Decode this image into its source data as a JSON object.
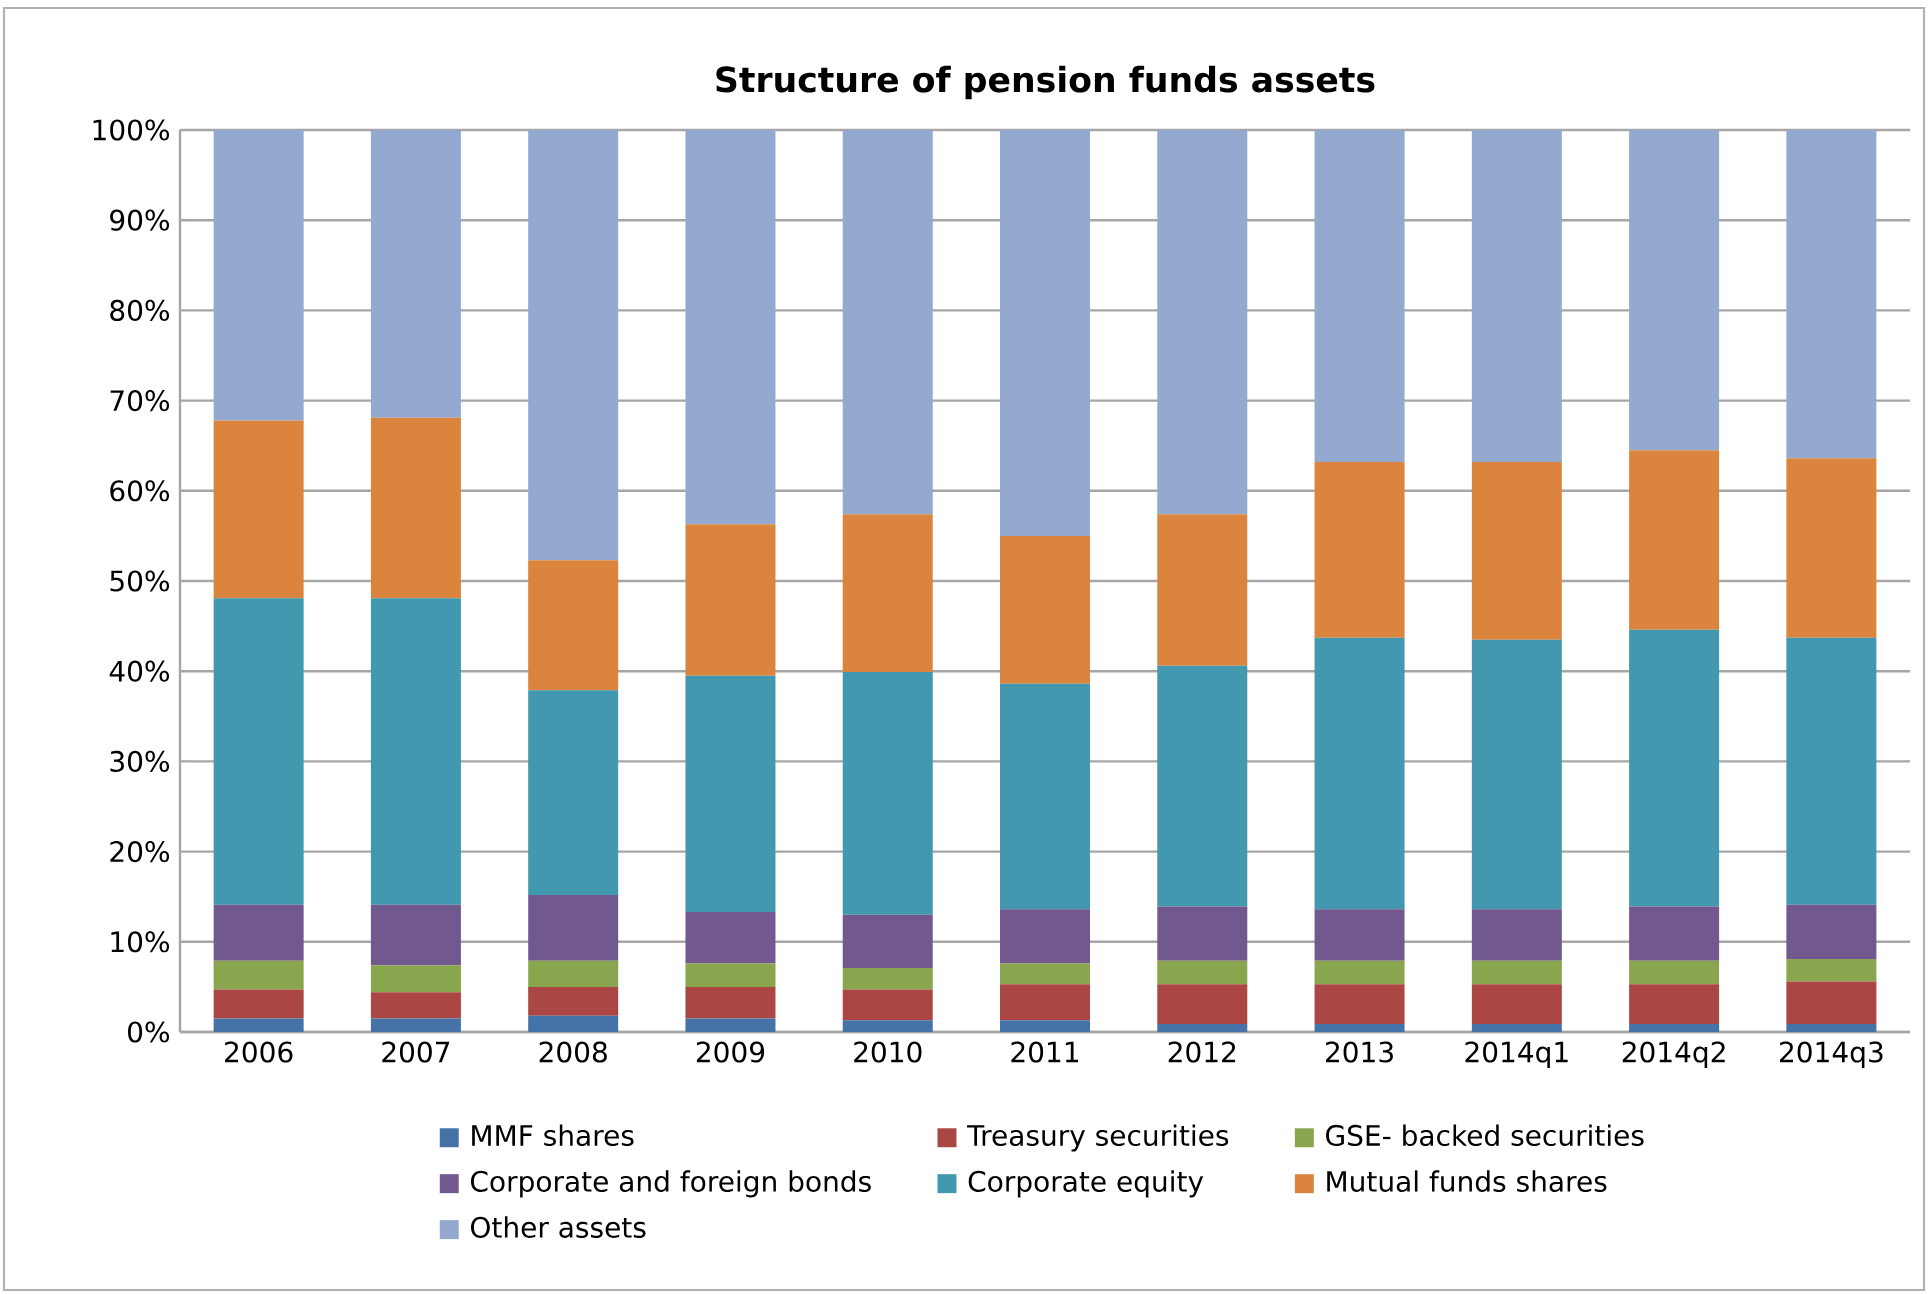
{
  "chart_data": {
    "type": "bar",
    "stacked": true,
    "title": "Structure of pension funds assets",
    "categories": [
      "2006",
      "2007",
      "2008",
      "2009",
      "2010",
      "2011",
      "2012",
      "2013",
      "2014q1",
      "2014q2",
      "2014q3"
    ],
    "series": [
      {
        "name": "MMF shares",
        "color": "#4572a7",
        "values": [
          1.5,
          1.5,
          1.8,
          1.5,
          1.3,
          1.3,
          0.9,
          0.9,
          0.9,
          0.9,
          0.9
        ]
      },
      {
        "name": "Treasury securities",
        "color": "#aa4643",
        "values": [
          3.2,
          2.9,
          3.2,
          3.5,
          3.4,
          4.0,
          4.4,
          4.4,
          4.4,
          4.4,
          4.7
        ]
      },
      {
        "name": "GSE- backed securities",
        "color": "#89a54e",
        "values": [
          3.2,
          3.0,
          2.9,
          2.6,
          2.4,
          2.3,
          2.6,
          2.6,
          2.6,
          2.6,
          2.5
        ]
      },
      {
        "name": "Corporate and foreign bonds",
        "color": "#71588f",
        "values": [
          6.2,
          6.7,
          7.3,
          5.7,
          5.9,
          6.0,
          6.0,
          5.7,
          5.7,
          6.0,
          6.0
        ]
      },
      {
        "name": "Corporate equity",
        "color": "#4198af",
        "values": [
          34.0,
          34.0,
          22.7,
          26.2,
          26.9,
          25.0,
          26.7,
          30.1,
          29.9,
          30.7,
          29.6
        ]
      },
      {
        "name": "Mutual funds shares",
        "color": "#db843d",
        "values": [
          19.7,
          20.0,
          14.4,
          16.8,
          17.5,
          16.4,
          16.8,
          19.5,
          19.7,
          19.9,
          19.9
        ]
      },
      {
        "name": "Other assets",
        "color": "#93a9cf",
        "values": [
          32.2,
          31.9,
          47.7,
          43.7,
          42.6,
          45.0,
          42.6,
          36.8,
          36.8,
          35.5,
          36.4
        ]
      }
    ],
    "ylim": [
      0,
      100
    ],
    "yticks": [
      {
        "value": 0,
        "label": "0%"
      },
      {
        "value": 10,
        "label": "10%"
      },
      {
        "value": 20,
        "label": "20%"
      },
      {
        "value": 30,
        "label": "30%"
      },
      {
        "value": 40,
        "label": "40%"
      },
      {
        "value": 50,
        "label": "50%"
      },
      {
        "value": 60,
        "label": "60%"
      },
      {
        "value": 70,
        "label": "70%"
      },
      {
        "value": 80,
        "label": "80%"
      },
      {
        "value": 90,
        "label": "90%"
      },
      {
        "value": 100,
        "label": "100%"
      }
    ],
    "grid": "y",
    "legend": "bottom"
  }
}
